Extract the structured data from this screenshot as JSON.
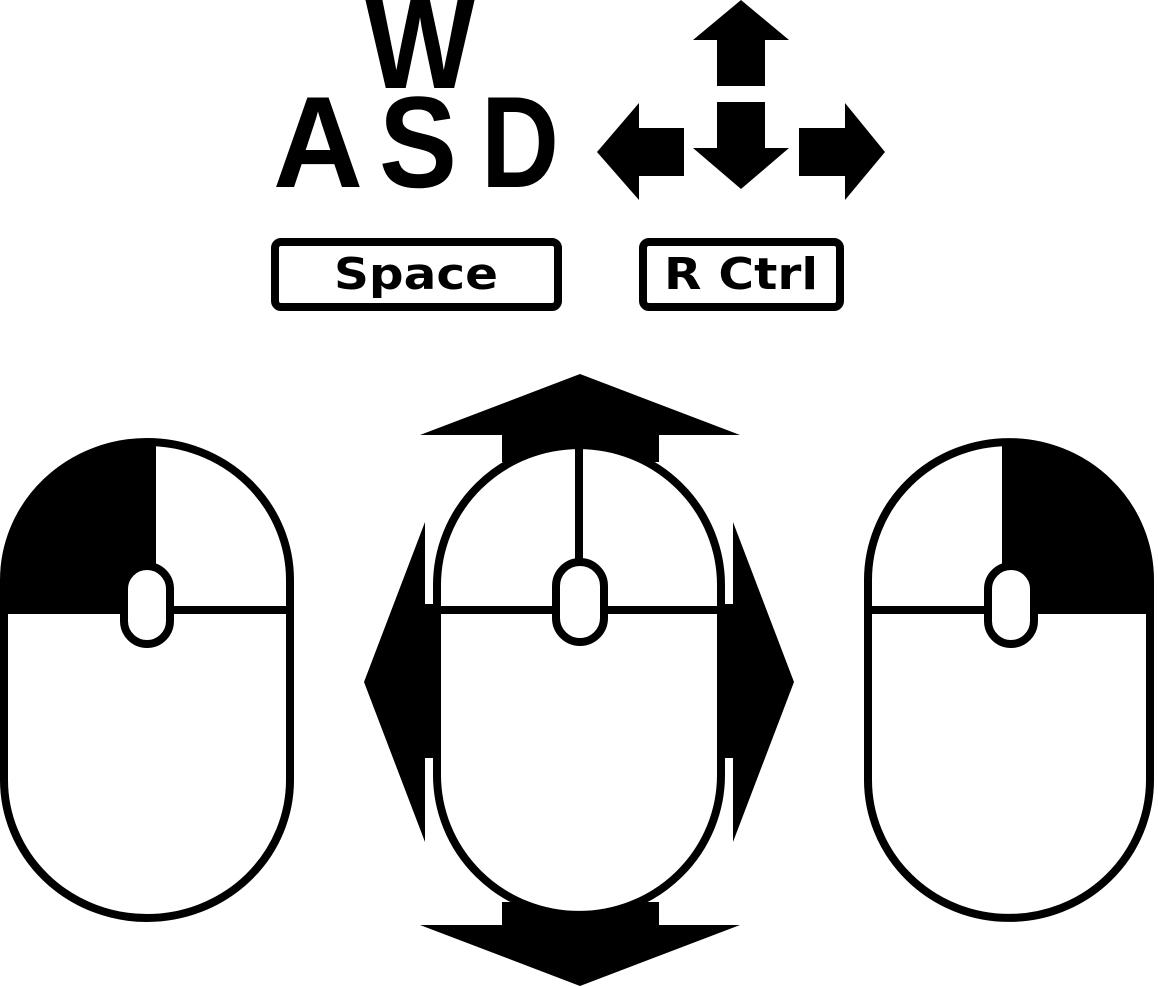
{
  "keyboard": {
    "letters": {
      "w": "W",
      "a": "A",
      "s": "S",
      "d": "D"
    },
    "keys": {
      "space": "Space",
      "rctrl": "R Ctrl"
    }
  },
  "mice": [
    {
      "name": "left-click-mouse",
      "highlight": "left-button"
    },
    {
      "name": "move-mouse",
      "highlight": "movement-arrows"
    },
    {
      "name": "right-click-mouse",
      "highlight": "right-button"
    }
  ],
  "colors": {
    "ink": "#000000",
    "paper": "#ffffff"
  }
}
